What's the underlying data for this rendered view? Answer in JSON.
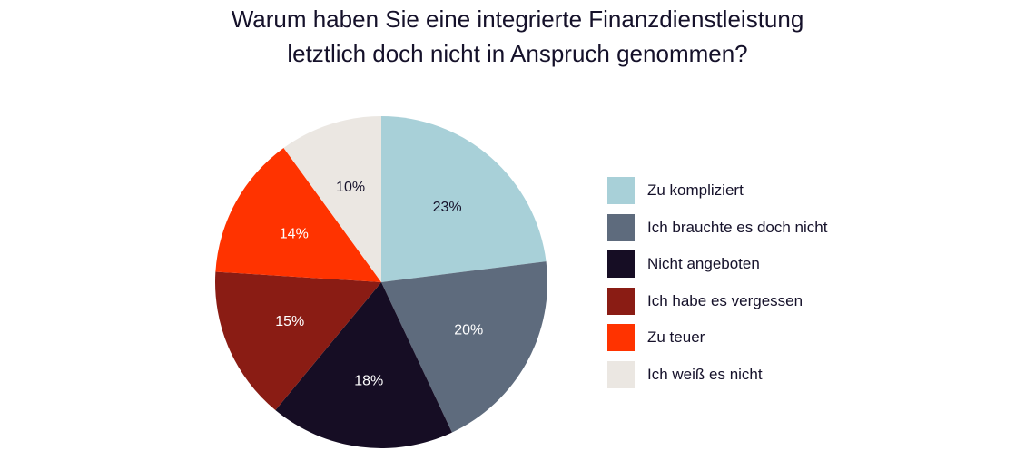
{
  "chart_data": {
    "type": "pie",
    "title_lines": [
      "Warum haben Sie eine integrierte Finanzdienstleistung",
      "letztlich doch nicht in Anspruch genommen?"
    ],
    "slices": [
      {
        "label": "Zu kompliziert",
        "value": 23,
        "value_label": "23%",
        "color": "#a8d0d8",
        "text_color": "#15112a"
      },
      {
        "label": "Ich brauchte es doch nicht",
        "value": 20,
        "value_label": "20%",
        "color": "#5e6b7d",
        "text_color": "#ffffff"
      },
      {
        "label": "Nicht angeboten",
        "value": 18,
        "value_label": "18%",
        "color": "#160d24",
        "text_color": "#ffffff"
      },
      {
        "label": "Ich habe es vergessen",
        "value": 15,
        "value_label": "15%",
        "color": "#8a1c14",
        "text_color": "#ffffff"
      },
      {
        "label": "Zu teuer",
        "value": 14,
        "value_label": "14%",
        "color": "#ff3300",
        "text_color": "#ffffff"
      },
      {
        "label": "Ich weiß es nicht",
        "value": 10,
        "value_label": "10%",
        "color": "#ebe7e2",
        "text_color": "#15112a"
      }
    ],
    "legend_position": "right"
  }
}
